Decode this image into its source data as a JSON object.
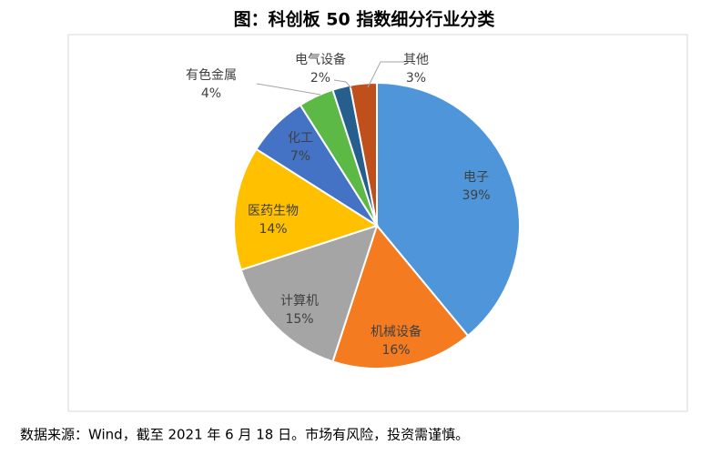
{
  "chart_data": {
    "type": "pie",
    "title": "图：科创板 50 指数细分行业分类",
    "categories": [
      "电子",
      "机械设备",
      "计算机",
      "医药生物",
      "化工",
      "有色金属",
      "电气设备",
      "其他"
    ],
    "values": [
      39,
      16,
      15,
      14,
      7,
      4,
      2,
      3
    ],
    "value_labels": [
      "39%",
      "16%",
      "15%",
      "14%",
      "7%",
      "4%",
      "2%",
      "3%"
    ],
    "colors": [
      "#4e96d9",
      "#f47b20",
      "#a5a5a5",
      "#ffc000",
      "#4472c4",
      "#5cb946",
      "#265e8e",
      "#c0501b"
    ],
    "source": "数据来源：Wind，截至 2021 年 6 月 18 日。市场有风险，投资需谨慎。"
  }
}
